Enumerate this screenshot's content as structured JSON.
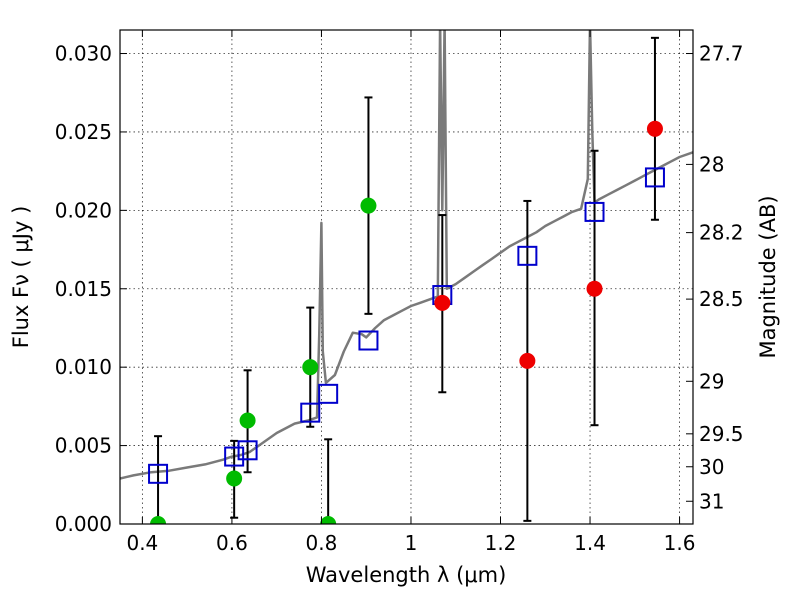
{
  "chart_data": {
    "type": "scatter",
    "xlabel": "Wavelength  λ (μm)",
    "ylabel": "Flux  Fν  ( μJy )",
    "ylabel_right": "Magnitude (AB)",
    "xlim": [
      0.35,
      1.63
    ],
    "ylim": [
      0.0,
      0.0315
    ],
    "grid": true,
    "x_ticks": [
      0.4,
      0.6,
      0.8,
      1.0,
      1.2,
      1.4,
      1.6
    ],
    "x_tick_labels": [
      "0.4",
      "0.6",
      "0.8",
      "1",
      "1.2",
      "1.4",
      "1.6"
    ],
    "y_ticks": [
      0.0,
      0.005,
      0.01,
      0.015,
      0.02,
      0.025,
      0.03
    ],
    "y_tick_labels": [
      "0.000",
      "0.005",
      "0.010",
      "0.015",
      "0.020",
      "0.025",
      "0.030"
    ],
    "right_ticks": [
      {
        "label": "27.7",
        "flux": 0.03
      },
      {
        "label": "28",
        "flux": 0.02293
      },
      {
        "label": "28.2",
        "flux": 0.01858
      },
      {
        "label": "28.5",
        "flux": 0.01434
      },
      {
        "label": "29",
        "flux": 0.0091
      },
      {
        "label": "29.5",
        "flux": 0.00575
      },
      {
        "label": "30",
        "flux": 0.00365
      },
      {
        "label": "31",
        "flux": 0.00145
      }
    ],
    "model_spectrum": [
      [
        0.35,
        0.0029
      ],
      [
        0.38,
        0.0031
      ],
      [
        0.42,
        0.0033
      ],
      [
        0.46,
        0.0034
      ],
      [
        0.5,
        0.0036
      ],
      [
        0.54,
        0.0038
      ],
      [
        0.58,
        0.0041
      ],
      [
        0.6,
        0.0043
      ],
      [
        0.62,
        0.0044
      ],
      [
        0.64,
        0.0046
      ],
      [
        0.66,
        0.005
      ],
      [
        0.7,
        0.0058
      ],
      [
        0.74,
        0.0064
      ],
      [
        0.77,
        0.0066
      ],
      [
        0.79,
        0.0068
      ],
      [
        0.795,
        0.012
      ],
      [
        0.8,
        0.0192
      ],
      [
        0.803,
        0.011
      ],
      [
        0.81,
        0.009
      ],
      [
        0.83,
        0.0095
      ],
      [
        0.85,
        0.011
      ],
      [
        0.87,
        0.0122
      ],
      [
        0.89,
        0.0121
      ],
      [
        0.9,
        0.0119
      ],
      [
        0.92,
        0.0125
      ],
      [
        0.94,
        0.013
      ],
      [
        0.96,
        0.0133
      ],
      [
        0.98,
        0.0136
      ],
      [
        1.0,
        0.0139
      ],
      [
        1.02,
        0.0141
      ],
      [
        1.04,
        0.0143
      ],
      [
        1.06,
        0.0145
      ],
      [
        1.065,
        0.032
      ],
      [
        1.07,
        0.02
      ],
      [
        1.075,
        0.032
      ],
      [
        1.08,
        0.015
      ],
      [
        1.1,
        0.0153
      ],
      [
        1.12,
        0.0157
      ],
      [
        1.14,
        0.0161
      ],
      [
        1.16,
        0.0165
      ],
      [
        1.18,
        0.0169
      ],
      [
        1.2,
        0.0173
      ],
      [
        1.22,
        0.0177
      ],
      [
        1.24,
        0.018
      ],
      [
        1.26,
        0.0183
      ],
      [
        1.28,
        0.0186
      ],
      [
        1.3,
        0.019
      ],
      [
        1.32,
        0.0193
      ],
      [
        1.34,
        0.0196
      ],
      [
        1.36,
        0.0199
      ],
      [
        1.38,
        0.0201
      ],
      [
        1.395,
        0.022
      ],
      [
        1.4,
        0.032
      ],
      [
        1.405,
        0.025
      ],
      [
        1.41,
        0.0205
      ],
      [
        1.42,
        0.0207
      ],
      [
        1.44,
        0.021
      ],
      [
        1.46,
        0.0213
      ],
      [
        1.48,
        0.0216
      ],
      [
        1.5,
        0.0219
      ],
      [
        1.52,
        0.0222
      ],
      [
        1.54,
        0.0225
      ],
      [
        1.56,
        0.0228
      ],
      [
        1.58,
        0.0231
      ],
      [
        1.6,
        0.0234
      ],
      [
        1.63,
        0.0237
      ]
    ],
    "model_boxes": [
      {
        "x": 0.435,
        "y": 0.0032
      },
      {
        "x": 0.605,
        "y": 0.0043
      },
      {
        "x": 0.635,
        "y": 0.0047
      },
      {
        "x": 0.775,
        "y": 0.0071
      },
      {
        "x": 0.815,
        "y": 0.0083
      },
      {
        "x": 0.905,
        "y": 0.0117
      },
      {
        "x": 1.07,
        "y": 0.0146
      },
      {
        "x": 1.26,
        "y": 0.0171
      },
      {
        "x": 1.41,
        "y": 0.0199
      },
      {
        "x": 1.545,
        "y": 0.0221
      }
    ],
    "green_points": [
      {
        "x": 0.435,
        "y": 0.0,
        "lo": 0.0,
        "hi": 0.0056
      },
      {
        "x": 0.605,
        "y": 0.0029,
        "lo": 0.0004,
        "hi": 0.0053
      },
      {
        "x": 0.635,
        "y": 0.0066,
        "lo": 0.0033,
        "hi": 0.0098
      },
      {
        "x": 0.775,
        "y": 0.01,
        "lo": 0.0062,
        "hi": 0.0138
      },
      {
        "x": 0.815,
        "y": 0.0,
        "lo": 0.0,
        "hi": 0.0054
      },
      {
        "x": 0.905,
        "y": 0.0203,
        "lo": 0.0134,
        "hi": 0.0272
      }
    ],
    "red_points": [
      {
        "x": 1.07,
        "y": 0.0141,
        "lo": 0.0084,
        "hi": 0.0197
      },
      {
        "x": 1.26,
        "y": 0.0104,
        "lo": 0.0002,
        "hi": 0.0206
      },
      {
        "x": 1.41,
        "y": 0.015,
        "lo": 0.0063,
        "hi": 0.0238
      },
      {
        "x": 1.545,
        "y": 0.0252,
        "lo": 0.0194,
        "hi": 0.031
      }
    ],
    "colors": {
      "spectrum": "#7a7a7a",
      "box": "#0000cc",
      "green": "#00bb00",
      "red": "#ee0000",
      "errorbar": "#000000"
    }
  }
}
